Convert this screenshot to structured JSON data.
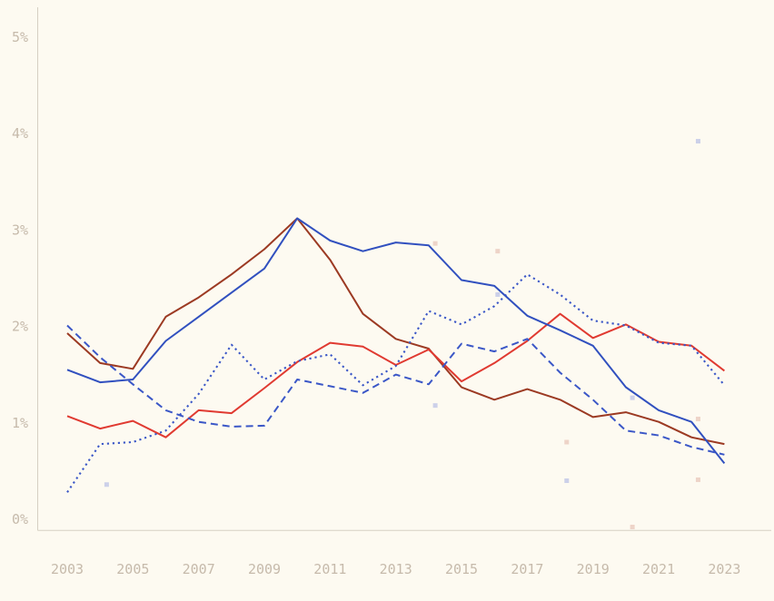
{
  "chart_data": {
    "type": "line",
    "title": "",
    "xlabel": "",
    "ylabel": "",
    "x": [
      2003,
      2004,
      2005,
      2006,
      2007,
      2008,
      2009,
      2010,
      2011,
      2012,
      2013,
      2014,
      2015,
      2016,
      2017,
      2018,
      2019,
      2020,
      2021,
      2022,
      2023
    ],
    "xlim": [
      2002.1,
      2024.5
    ],
    "ylim": [
      0,
      5.4
    ],
    "grid": false,
    "legend": "none",
    "x_ticks": [
      {
        "label": "2003",
        "value": 2003
      },
      {
        "label": "2005",
        "value": 2005
      },
      {
        "label": "2007",
        "value": 2007
      },
      {
        "label": "2009",
        "value": 2009
      },
      {
        "label": "2011",
        "value": 2011
      },
      {
        "label": "2013",
        "value": 2013
      },
      {
        "label": "2015",
        "value": 2015
      },
      {
        "label": "2017",
        "value": 2017
      },
      {
        "label": "2019",
        "value": 2019
      },
      {
        "label": "2021",
        "value": 2021
      },
      {
        "label": "2023",
        "value": 2023
      }
    ],
    "y_ticks": [
      {
        "label": "0%",
        "value": 0
      },
      {
        "label": "1%",
        "value": 1
      },
      {
        "label": "2%",
        "value": 2
      },
      {
        "label": "3%",
        "value": 3
      },
      {
        "label": "4%",
        "value": 4
      },
      {
        "label": "5%",
        "value": 5
      }
    ],
    "series": [
      {
        "name": "dark-red-solid-line",
        "color": "#9c3a23",
        "style": "solid",
        "values": [
          1.93,
          1.62,
          1.56,
          2.1,
          2.3,
          2.54,
          2.8,
          3.12,
          2.69,
          2.13,
          1.87,
          1.77,
          1.37,
          1.24,
          1.35,
          1.24,
          1.06,
          1.11,
          1.01,
          0.85,
          0.78
        ]
      },
      {
        "name": "red-solid-line",
        "color": "#e03a31",
        "style": "solid",
        "values": [
          1.07,
          0.94,
          1.02,
          0.85,
          1.13,
          1.1,
          1.36,
          1.63,
          1.83,
          1.79,
          1.6,
          1.76,
          1.43,
          1.62,
          1.85,
          2.13,
          1.88,
          2.02,
          1.84,
          1.8,
          1.54
        ]
      },
      {
        "name": "blue-solid-line",
        "color": "#3150bf",
        "style": "solid",
        "values": [
          1.55,
          1.42,
          1.45,
          1.85,
          2.1,
          2.35,
          2.6,
          3.12,
          2.89,
          2.78,
          2.87,
          2.84,
          2.48,
          2.42,
          2.11,
          1.96,
          1.8,
          1.37,
          1.13,
          1.01,
          0.58
        ]
      },
      {
        "name": "blue-dashed-line",
        "color": "#3b57c7",
        "style": "dashed",
        "values": [
          2.01,
          1.68,
          1.4,
          1.13,
          1.01,
          0.96,
          0.97,
          1.45,
          1.38,
          1.31,
          1.5,
          1.4,
          1.82,
          1.74,
          1.87,
          1.52,
          1.24,
          0.92,
          0.87,
          0.75,
          0.67
        ]
      },
      {
        "name": "blue-dotted-line",
        "color": "#3b57c7",
        "style": "dotted",
        "values": [
          0.28,
          0.78,
          0.8,
          0.92,
          1.3,
          1.81,
          1.45,
          1.64,
          1.71,
          1.39,
          1.59,
          2.16,
          2.02,
          2.21,
          2.54,
          2.33,
          2.06,
          2.01,
          1.83,
          1.8,
          1.39
        ]
      }
    ],
    "scatter": [
      {
        "name": "lavender-square-markers",
        "color": "#ccd0e9",
        "points": [
          [
            2004.2,
            0.36
          ],
          [
            2014.2,
            1.18
          ],
          [
            2016.1,
            2.33
          ],
          [
            2018.2,
            0.4
          ],
          [
            2020.2,
            1.26
          ],
          [
            2022.2,
            3.92
          ]
        ]
      },
      {
        "name": "pink-square-markers",
        "color": "#eed4c8",
        "points": [
          [
            2014.2,
            2.86
          ],
          [
            2016.1,
            2.78
          ],
          [
            2018.2,
            0.8
          ],
          [
            2020.2,
            -0.08
          ],
          [
            2022.2,
            1.04
          ],
          [
            2022.2,
            0.41
          ]
        ]
      }
    ]
  },
  "colors": {
    "background": "#fdfaf1",
    "axis_line": "#d6d0c3",
    "tick_label": "#c6baab",
    "blue": "#3150bf",
    "red": "#e03a31",
    "dark_red": "#9c3a23",
    "lavender_marker": "#ccd0e9",
    "pink_marker": "#eed4c8"
  }
}
